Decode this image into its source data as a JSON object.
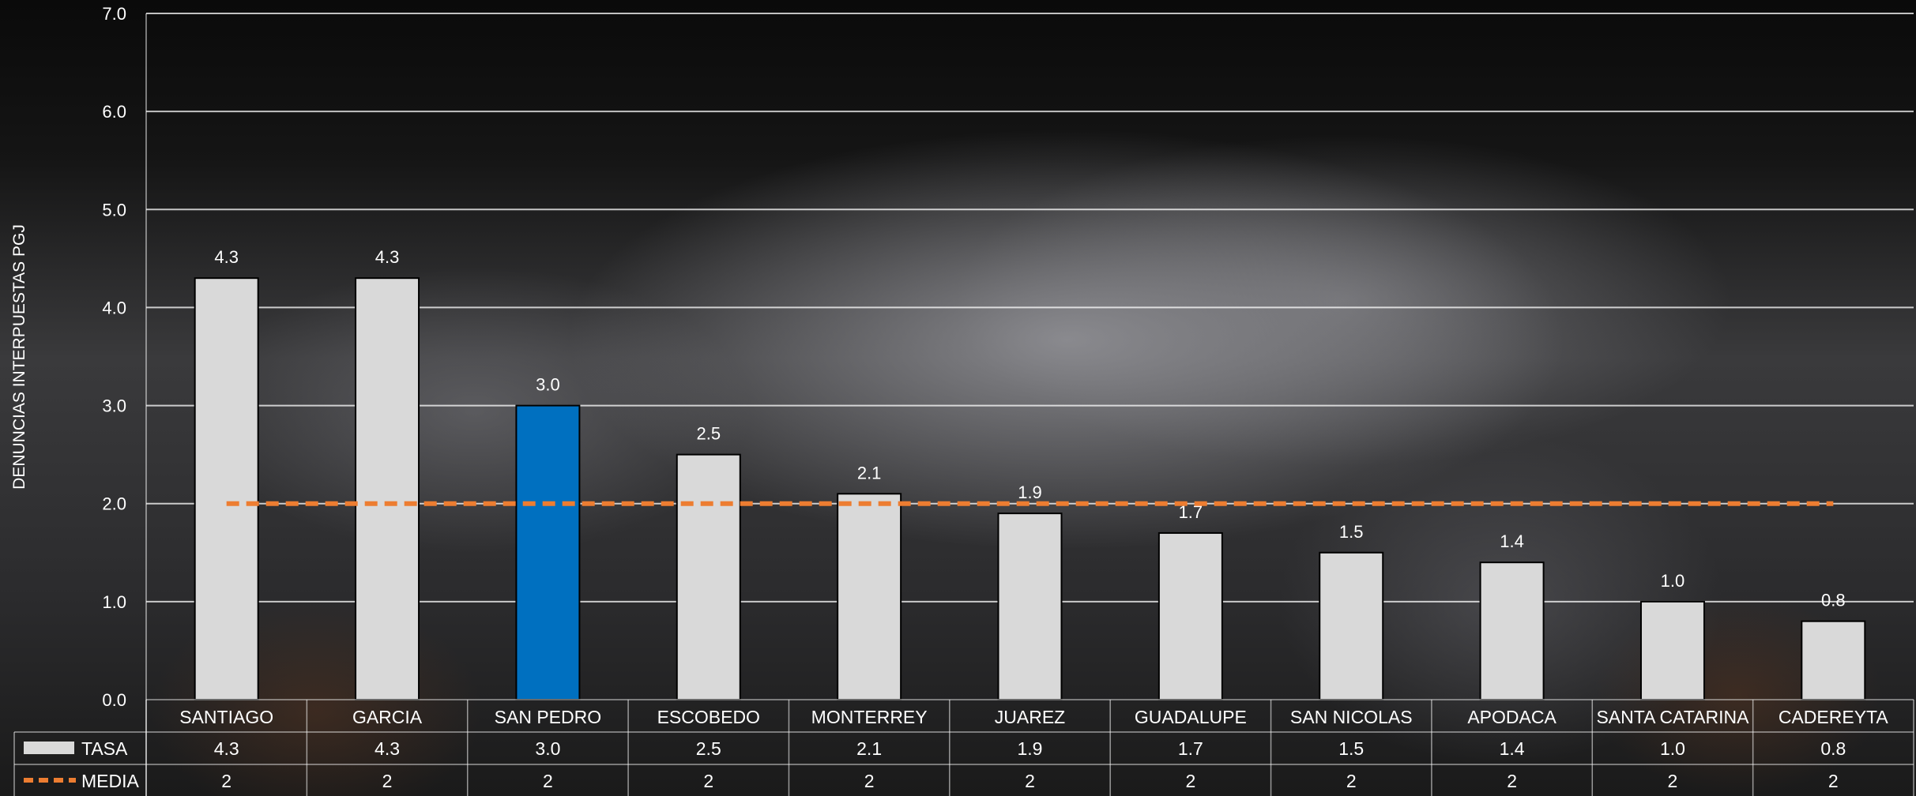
{
  "chart_data": {
    "type": "bar",
    "ylabel": "DENUNCIAS INTERPUESTAS PGJ",
    "ylim": [
      0,
      7
    ],
    "yticks": [
      "0.0",
      "1.0",
      "2.0",
      "3.0",
      "4.0",
      "5.0",
      "6.0",
      "7.0"
    ],
    "grid": true,
    "categories": [
      "SANTIAGO",
      "GARCIA",
      "SAN PEDRO",
      "ESCOBEDO",
      "MONTERREY",
      "JUAREZ",
      "GUADALUPE",
      "SAN NICOLAS",
      "APODACA",
      "SANTA CATARINA",
      "CADEREYTA"
    ],
    "series": [
      {
        "name": "TASA",
        "type": "bar",
        "values": [
          4.3,
          4.3,
          3.0,
          2.5,
          2.1,
          1.9,
          1.7,
          1.5,
          1.4,
          1.0,
          0.8
        ],
        "labels": [
          "4.3",
          "4.3",
          "3.0",
          "2.5",
          "2.1",
          "1.9",
          "1.7",
          "1.5",
          "1.4",
          "1.0",
          "0.8"
        ],
        "color": "#d9d9d9",
        "highlight_index": 2,
        "highlight_color": "#0070c0"
      },
      {
        "name": "MEDIA",
        "type": "line",
        "style": "dashed",
        "values": [
          2,
          2,
          2,
          2,
          2,
          2,
          2,
          2,
          2,
          2,
          2
        ],
        "labels": [
          "2",
          "2",
          "2",
          "2",
          "2",
          "2",
          "2",
          "2",
          "2",
          "2",
          "2"
        ],
        "color": "#ed7d31"
      }
    ],
    "legend": "data-table"
  }
}
